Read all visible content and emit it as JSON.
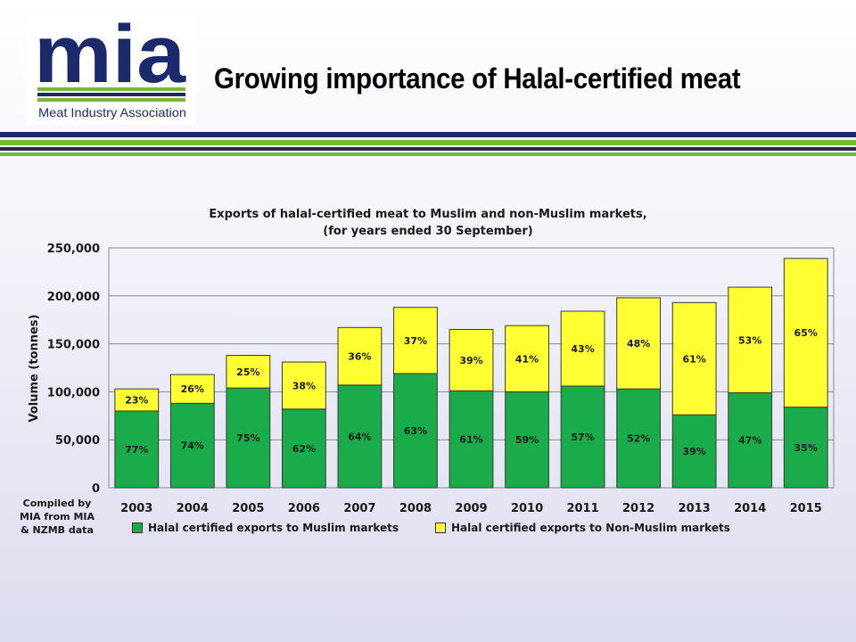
{
  "header": {
    "logo_text": "mia",
    "logo_subtitle": "Meat Industry Association",
    "title": "Growing importance of Halal-certified meat"
  },
  "colors": {
    "muslim": "#1aab4a",
    "non_muslim": "#ffff33",
    "navy": "#1b2a6b",
    "green_rule": "#7ab637"
  },
  "compiled_note": [
    "Compiled by",
    "MIA from MIA",
    "& NZMB data"
  ],
  "chart_data": {
    "type": "bar",
    "stacked": true,
    "title": "Exports of halal-certified meat to Muslim and non-Muslim markets,",
    "subtitle": "(for years ended 30 September)",
    "ylabel": "Volume (tonnes)",
    "xlabel": "",
    "ylim": [
      0,
      250000
    ],
    "yticks": [
      0,
      50000,
      100000,
      150000,
      200000,
      250000
    ],
    "ytick_labels": [
      "0",
      "50,000",
      "100,000",
      "150,000",
      "200,000",
      "250,000"
    ],
    "grid": true,
    "legend_position": "bottom",
    "categories": [
      "2003",
      "2004",
      "2005",
      "2006",
      "2007",
      "2008",
      "2009",
      "2010",
      "2011",
      "2012",
      "2013",
      "2014",
      "2015"
    ],
    "series": [
      {
        "name": "Halal certified exports to Muslim markets",
        "color": "#1aab4a",
        "values": [
          80000,
          88000,
          104000,
          82000,
          107000,
          119000,
          101000,
          100000,
          106000,
          103000,
          76000,
          99000,
          84000
        ],
        "labels": [
          "77%",
          "74%",
          "75%",
          "62%",
          "64%",
          "63%",
          "61%",
          "59%",
          "57%",
          "52%",
          "39%",
          "47%",
          "35%"
        ]
      },
      {
        "name": "Halal certified exports to Non-Muslim markets",
        "color": "#ffff33",
        "values": [
          23000,
          30000,
          34000,
          49000,
          60000,
          69000,
          64000,
          69000,
          78000,
          95000,
          117000,
          110000,
          155000
        ],
        "labels": [
          "23%",
          "26%",
          "25%",
          "38%",
          "36%",
          "37%",
          "39%",
          "41%",
          "43%",
          "48%",
          "61%",
          "53%",
          "65%"
        ]
      }
    ]
  }
}
